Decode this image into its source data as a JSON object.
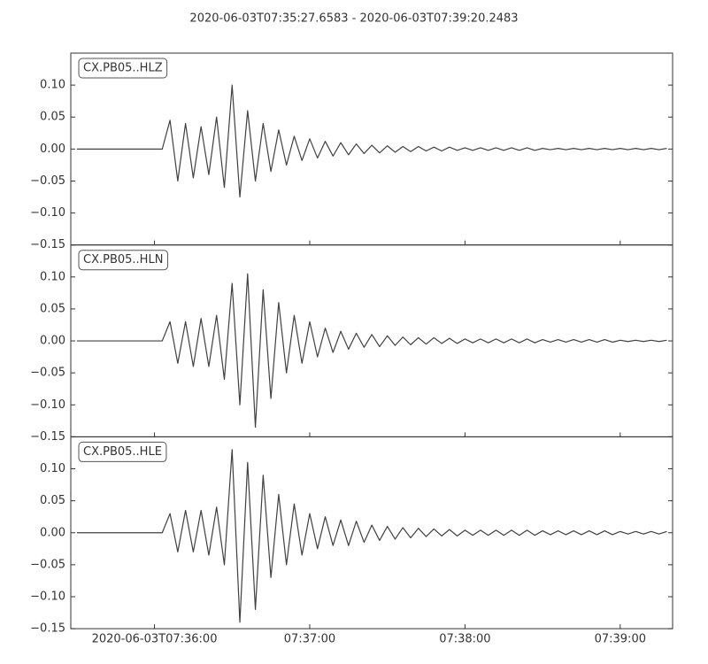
{
  "chart_data": {
    "type": "line",
    "layout": "stacked",
    "title": "2020-06-03T07:35:27.6583  -  2020-06-03T07:39:20.2483",
    "xlim": [
      "07:35:27.6583",
      "07:39:20.2483"
    ],
    "xticks": [
      {
        "value": "07:36:00",
        "label": "2020-06-03T07:36:00"
      },
      "07:37:00",
      "07:38:00",
      "07:39:00"
    ],
    "ylim": [
      -0.15,
      0.15
    ],
    "yticks": [
      {
        "value": -0.15,
        "label": "−0.15"
      },
      {
        "value": -0.1,
        "label": "−0.10"
      },
      {
        "value": -0.05,
        "label": "−0.05"
      },
      {
        "value": 0,
        "label": "0.00"
      },
      {
        "value": 0.05,
        "label": "0.05"
      },
      {
        "value": 0.1,
        "label": "0.10"
      }
    ],
    "color": "#404040",
    "x": [
      "07:35:30",
      "07:35:33",
      "07:35:36",
      "07:35:39",
      "07:35:42",
      "07:35:45",
      "07:35:48",
      "07:35:51",
      "07:35:54",
      "07:35:57",
      "07:36:00",
      "07:36:03",
      "07:36:06",
      "07:36:09",
      "07:36:12",
      "07:36:15",
      "07:36:18",
      "07:36:21",
      "07:36:24",
      "07:36:27",
      "07:36:30",
      "07:36:33",
      "07:36:36",
      "07:36:39",
      "07:36:42",
      "07:36:45",
      "07:36:48",
      "07:36:51",
      "07:36:54",
      "07:36:57",
      "07:37:00",
      "07:37:03",
      "07:37:06",
      "07:37:09",
      "07:37:12",
      "07:37:15",
      "07:37:18",
      "07:37:21",
      "07:37:24",
      "07:37:27",
      "07:37:30",
      "07:37:33",
      "07:37:36",
      "07:37:39",
      "07:37:42",
      "07:37:45",
      "07:37:48",
      "07:37:51",
      "07:37:54",
      "07:37:57",
      "07:38:00",
      "07:38:03",
      "07:38:06",
      "07:38:09",
      "07:38:12",
      "07:38:15",
      "07:38:18",
      "07:38:21",
      "07:38:24",
      "07:38:27",
      "07:38:30",
      "07:38:33",
      "07:38:36",
      "07:38:39",
      "07:38:42",
      "07:38:45",
      "07:38:48",
      "07:38:51",
      "07:38:54",
      "07:38:57",
      "07:39:00",
      "07:39:03",
      "07:39:06",
      "07:39:09",
      "07:39:12",
      "07:39:15",
      "07:39:18"
    ],
    "series": [
      {
        "name": "CX.PB05..HLZ",
        "values": [
          0,
          0,
          0,
          0,
          0,
          0,
          0,
          0,
          0,
          0,
          0,
          0,
          0.045,
          -0.05,
          0.04,
          -0.045,
          0.035,
          -0.04,
          0.05,
          -0.06,
          0.1,
          -0.075,
          0.06,
          -0.05,
          0.04,
          -0.035,
          0.03,
          -0.025,
          0.02,
          -0.018,
          0.016,
          -0.014,
          0.012,
          -0.011,
          0.01,
          -0.009,
          0.008,
          -0.007,
          0.006,
          -0.006,
          0.005,
          -0.005,
          0.004,
          -0.004,
          0.004,
          -0.003,
          0.003,
          -0.003,
          0.003,
          -0.002,
          0.002,
          -0.002,
          0.002,
          -0.002,
          0.002,
          -0.002,
          0.002,
          -0.002,
          0.002,
          -0.002,
          0.001,
          -0.001,
          0.001,
          -0.001,
          0.001,
          -0.001,
          0.001,
          -0.001,
          0.001,
          -0.001,
          0.001,
          -0.001,
          0.001,
          -0.001,
          0.001,
          -0.001,
          0.001
        ]
      },
      {
        "name": "CX.PB05..HLN",
        "values": [
          0,
          0,
          0,
          0,
          0,
          0,
          0,
          0,
          0,
          0,
          0,
          0,
          0.03,
          -0.035,
          0.03,
          -0.04,
          0.035,
          -0.04,
          0.04,
          -0.06,
          0.09,
          -0.1,
          0.105,
          -0.135,
          0.08,
          -0.09,
          0.06,
          -0.05,
          0.04,
          -0.035,
          0.03,
          -0.025,
          0.02,
          -0.018,
          0.015,
          -0.013,
          0.012,
          -0.01,
          0.01,
          -0.009,
          0.008,
          -0.007,
          0.006,
          -0.006,
          0.005,
          -0.005,
          0.005,
          -0.004,
          0.004,
          -0.004,
          0.003,
          -0.003,
          0.003,
          -0.003,
          0.003,
          -0.003,
          0.003,
          -0.003,
          0.003,
          -0.003,
          0.002,
          -0.002,
          0.002,
          -0.002,
          0.002,
          -0.002,
          0.002,
          -0.002,
          0.002,
          -0.002,
          0.001,
          -0.001,
          0.001,
          -0.001,
          0.001,
          -0.001,
          0.001
        ]
      },
      {
        "name": "CX.PB05..HLE",
        "values": [
          0,
          0,
          0,
          0,
          0,
          0,
          0,
          0,
          0,
          0,
          0,
          0,
          0.03,
          -0.03,
          0.035,
          -0.03,
          0.035,
          -0.035,
          0.04,
          -0.05,
          0.13,
          -0.14,
          0.11,
          -0.12,
          0.09,
          -0.07,
          0.06,
          -0.05,
          0.045,
          -0.035,
          0.03,
          -0.025,
          0.025,
          -0.02,
          0.02,
          -0.02,
          0.018,
          -0.015,
          0.012,
          -0.012,
          0.01,
          -0.01,
          0.008,
          -0.008,
          0.007,
          -0.006,
          0.006,
          -0.005,
          0.005,
          -0.005,
          0.004,
          -0.004,
          0.004,
          -0.004,
          0.004,
          -0.004,
          0.004,
          -0.004,
          0.004,
          -0.004,
          0.003,
          -0.003,
          0.003,
          -0.003,
          0.003,
          -0.003,
          0.003,
          -0.003,
          0.003,
          -0.003,
          0.002,
          -0.002,
          0.002,
          -0.002,
          0.002,
          -0.002,
          0.002
        ]
      }
    ]
  }
}
